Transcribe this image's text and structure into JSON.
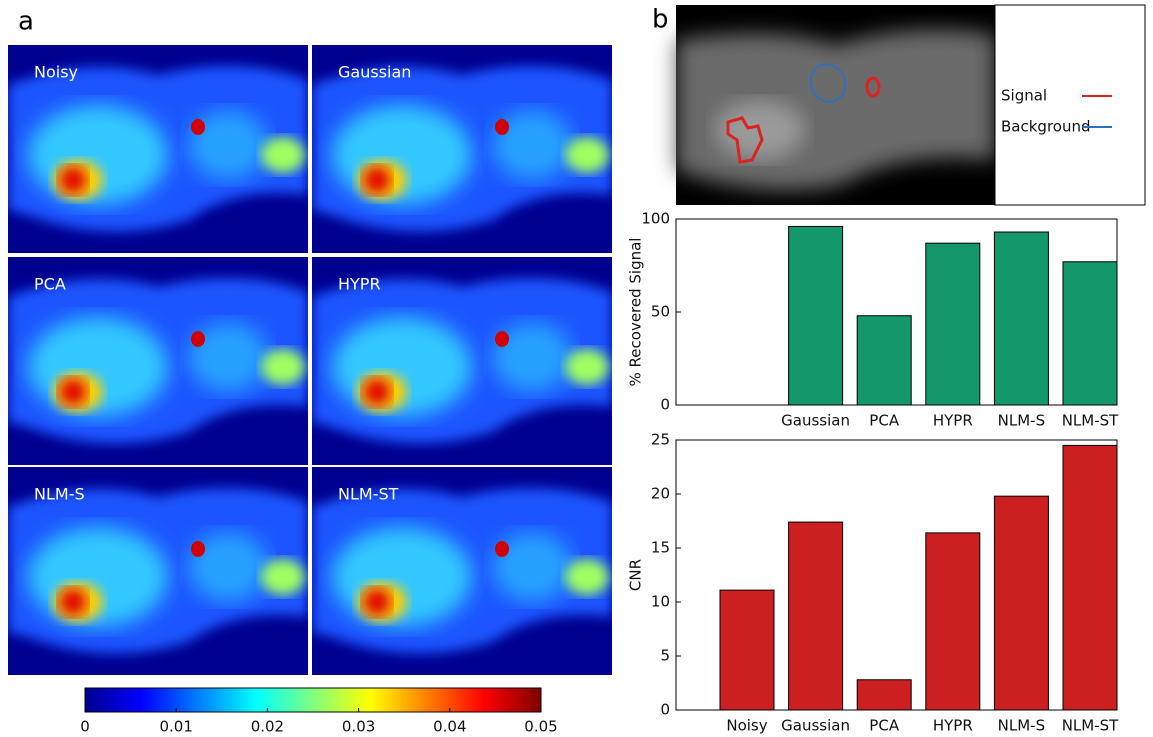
{
  "panel_labels": [
    "a",
    "b"
  ],
  "image_panels": [
    "Noisy",
    "Gaussian",
    "PCA",
    "HYPR",
    "NLM-S",
    "NLM-ST"
  ],
  "colorbar": {
    "lim": [
      0,
      0.05
    ],
    "ticks": [
      0,
      0.01,
      0.02,
      0.03,
      0.04,
      0.05
    ]
  },
  "roi_legend": [
    {
      "name": "Signal",
      "color": "#dd2222"
    },
    {
      "name": "Background",
      "color": "#2f6fc0"
    }
  ],
  "chart_data": [
    {
      "type": "bar",
      "ylabel": "% Recovered Signal",
      "categories": [
        null,
        "Gaussian",
        "PCA",
        "HYPR",
        "NLM-S",
        "NLM-ST"
      ],
      "values": [
        null,
        96,
        48,
        87,
        93,
        77
      ],
      "color": "#14976a",
      "ylim": [
        0,
        100
      ],
      "yticks": [
        0,
        50,
        100
      ]
    },
    {
      "type": "bar",
      "ylabel": "CNR",
      "categories": [
        "Noisy",
        "Gaussian",
        "PCA",
        "HYPR",
        "NLM-S",
        "NLM-ST"
      ],
      "values": [
        11.1,
        17.4,
        2.8,
        16.4,
        19.8,
        24.5
      ],
      "color": "#cc2020",
      "ylim": [
        0,
        25
      ],
      "yticks": [
        0,
        5,
        10,
        15,
        20,
        25
      ]
    }
  ]
}
